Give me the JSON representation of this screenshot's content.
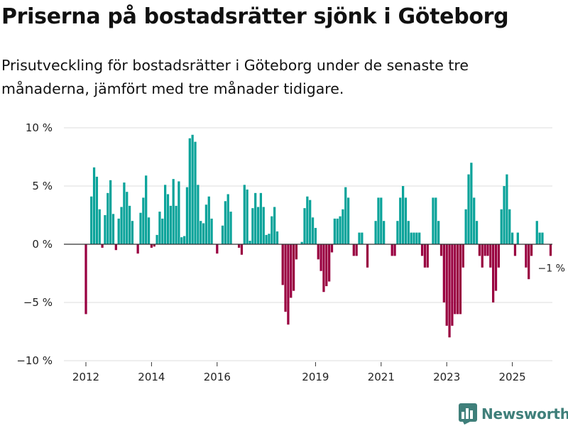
{
  "header": {
    "title": "Priserna på bostadsrätter sjönk i Göteborg",
    "subtitle": "Prisutveckling för bostadsrätter i Göteborg under de senaste tre månaderna, jämfört med tre månader tidigare."
  },
  "brand": {
    "name": "Newsworthy"
  },
  "colors": {
    "positive": "#0aa39a",
    "negative": "#990040",
    "grid": "#dddddd",
    "zero": "#333333"
  },
  "chart_data": {
    "type": "bar",
    "title": "Priserna på bostadsrätter sjönk i Göteborg",
    "subtitle": "Prisutveckling för bostadsrätter i Göteborg under de senaste tre månaderna, jämfört med tre månader tidigare.",
    "xlabel": "",
    "ylabel": "",
    "ylim": [
      -10,
      10
    ],
    "yticks": [
      10,
      5,
      0,
      -5,
      -10
    ],
    "ytick_labels": [
      "10 %",
      "5 %",
      "0 %",
      "−5 %",
      "−10 %"
    ],
    "xticks": [
      2012,
      2014,
      2016,
      2019,
      2021,
      2023,
      2025
    ],
    "xtick_labels": [
      "2012",
      "2014",
      "2016",
      "2019",
      "2021",
      "2023",
      "2025"
    ],
    "start": "2012-01",
    "frequency": "monthly",
    "values": [
      -6,
      0,
      4.1,
      6.6,
      5.8,
      3,
      -0.3,
      2.5,
      4.4,
      5.5,
      2.6,
      -0.5,
      2.2,
      3.2,
      5.3,
      4.5,
      3.3,
      2,
      0,
      -0.8,
      2.7,
      4,
      5.9,
      2.3,
      -0.3,
      -0.2,
      0.8,
      2.8,
      2.2,
      5.1,
      4.3,
      3.3,
      5.6,
      3.3,
      5.4,
      0.6,
      0.7,
      4.9,
      9.1,
      9.4,
      8.8,
      5.1,
      2,
      1.8,
      3.4,
      4.1,
      2.2,
      0,
      -0.8,
      0,
      1.6,
      3.7,
      4.3,
      2.8,
      0,
      0,
      -0.3,
      -0.9,
      5.1,
      4.7,
      0.3,
      3.1,
      4.4,
      3.2,
      4.4,
      3.2,
      0.8,
      0.9,
      2.4,
      3.2,
      1.1,
      0,
      -3.5,
      -5.8,
      -6.9,
      -4.6,
      -4,
      -1.3,
      0,
      0.2,
      3.1,
      4.1,
      3.8,
      2.3,
      1.4,
      -1.3,
      -2.3,
      -4.1,
      -3.6,
      -3.2,
      -0.7,
      2.2,
      2.2,
      2.4,
      3,
      4.9,
      4,
      0,
      -1,
      -1,
      1,
      1,
      0,
      -2,
      0,
      0,
      2,
      4,
      4,
      2,
      0,
      0,
      -1,
      -1,
      2,
      4,
      5,
      4,
      2,
      1,
      1,
      1,
      1,
      -1,
      -2,
      -2,
      0,
      4,
      4,
      2,
      -1,
      -5,
      -7,
      -8,
      -7,
      -6,
      -6,
      -6,
      -2,
      3,
      6,
      7,
      4,
      2,
      -1,
      -2,
      -1,
      -1,
      -2,
      -5,
      -4,
      -2,
      3,
      5,
      6,
      3,
      1,
      -1,
      1,
      0,
      0,
      -2,
      -3,
      -1,
      0,
      2,
      1,
      1,
      0,
      0,
      -1
    ],
    "annotations": [
      {
        "label": "−1 %",
        "target": "last"
      }
    ]
  }
}
